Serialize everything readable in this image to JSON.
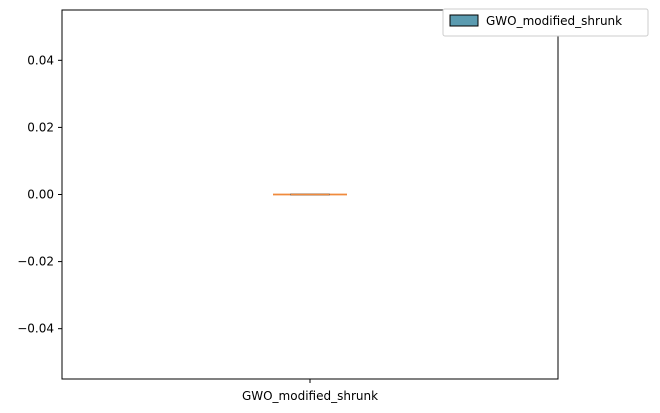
{
  "chart_data": {
    "type": "box",
    "categories": [
      "GWO_modified_shrunk"
    ],
    "series": [
      {
        "name": "GWO_modified_shrunk",
        "min": 0.0,
        "q1": 0.0,
        "median": 0.0,
        "q3": 0.0,
        "max": 0.0
      }
    ],
    "yticks": [
      -0.04,
      -0.02,
      0.0,
      0.02,
      0.04
    ],
    "ytick_labels": [
      "−0.04",
      "−0.02",
      "0.00",
      "0.02",
      "0.04"
    ],
    "ylim": [
      -0.055,
      0.055
    ],
    "grid": false,
    "legend_position": "top-right",
    "colors": {
      "box_fill": "#5b9bb0",
      "median": "#f08a3c",
      "whisker": "#f08a3c",
      "axis": "#000000"
    }
  }
}
